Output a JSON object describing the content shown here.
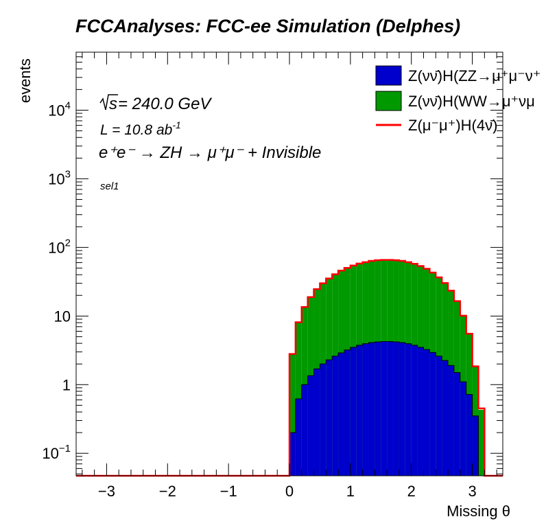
{
  "chart_data": {
    "type": "area",
    "title": "FCCAnalyses: FCC-ee Simulation (Delphes)",
    "xlabel": "Missing θ",
    "ylabel": "events",
    "xlim": [
      -3.5,
      3.5
    ],
    "ylim": [
      0.047,
      70000
    ],
    "log_y": true,
    "x_ticks": [
      -3,
      -2,
      -1,
      0,
      1,
      2,
      3
    ],
    "x_tick_labels": [
      "−3",
      "−2",
      "−1",
      "0",
      "1",
      "2",
      "3"
    ],
    "y_ticks": [
      0.1,
      1,
      10,
      100,
      1000,
      10000
    ],
    "y_tick_labels": [
      {
        "base": "10",
        "sup": "−1"
      },
      {
        "base": "1",
        "sup": ""
      },
      {
        "base": "10",
        "sup": ""
      },
      {
        "base": "10",
        "sup": "2"
      },
      {
        "base": "10",
        "sup": "3"
      },
      {
        "base": "10",
        "sup": "4"
      }
    ],
    "bin_edges": [
      0.0,
      0.1,
      0.2,
      0.3,
      0.4,
      0.5,
      0.6,
      0.7,
      0.8,
      0.9,
      1.0,
      1.1,
      1.2,
      1.3,
      1.4,
      1.5,
      1.6,
      1.7,
      1.8,
      1.9,
      2.0,
      2.1,
      2.2,
      2.3,
      2.4,
      2.5,
      2.6,
      2.7,
      2.8,
      2.9,
      3.0,
      3.1,
      3.2
    ],
    "series": [
      {
        "name": "Z(νν̄)H(ZZ→μ⁺μ⁻ν⁺",
        "color": "#0000cc",
        "style": "stacked-fill",
        "values": [
          0.2,
          0.62,
          1.0,
          1.35,
          1.7,
          2.0,
          2.3,
          2.6,
          2.9,
          3.2,
          3.5,
          3.75,
          3.95,
          4.1,
          4.2,
          4.25,
          4.25,
          4.2,
          4.1,
          3.95,
          3.75,
          3.5,
          3.25,
          2.95,
          2.6,
          2.25,
          1.9,
          1.5,
          1.1,
          0.72,
          0.35,
          0.0
        ]
      },
      {
        "name": "Z(νν̄)H(WW→μ⁺νμ",
        "color": "#009900",
        "style": "stacked-fill",
        "values": [
          2.6,
          7.5,
          12.5,
          17.5,
          23.0,
          28.0,
          33.0,
          38.0,
          43.0,
          47.0,
          51.0,
          54.5,
          57.0,
          59.5,
          61.0,
          61.5,
          61.5,
          61.0,
          59.5,
          57.0,
          54.0,
          50.0,
          45.5,
          40.0,
          34.0,
          28.0,
          21.5,
          15.0,
          9.0,
          4.8,
          1.5,
          0.43
        ]
      },
      {
        "name": "Z(μ⁻μ⁺)H(4ν̄)",
        "color": "#ff0000",
        "style": "line-total",
        "values": [
          2.8,
          8.12,
          13.5,
          18.85,
          24.7,
          30.0,
          35.3,
          40.6,
          45.9,
          50.2,
          54.5,
          58.25,
          60.95,
          63.6,
          65.2,
          65.75,
          65.75,
          65.2,
          63.6,
          60.95,
          57.75,
          53.5,
          48.75,
          42.95,
          36.6,
          30.25,
          23.4,
          16.5,
          10.1,
          5.52,
          1.85,
          0.45
        ]
      }
    ],
    "annotations": {
      "sqrt_s": "√s = 240.0 GeV",
      "sqrt_s_sym": "s",
      "sqrt_s_rest": " = 240.0 GeV",
      "lumi": "L = 10.8 ab",
      "lumi_sup": "-1",
      "process": "e⁺e⁻ → ZH → μ⁺μ⁻ + Invisible",
      "selection": "sel1"
    },
    "legend_position": "top-right",
    "grid": false
  }
}
